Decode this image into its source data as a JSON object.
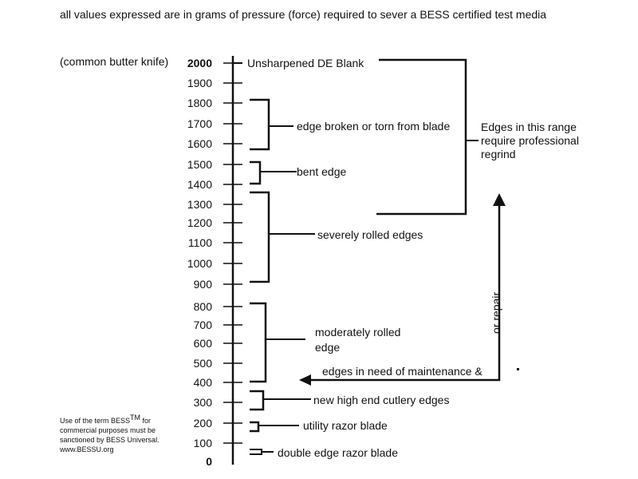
{
  "heading": "all values expressed are in grams of pressure (force) required to sever a BESS certified test media",
  "axis": {
    "knife_label": "(common butter knife)",
    "ticks": [
      {
        "value": 2000,
        "label": "2000",
        "bold": true
      },
      {
        "value": 1900,
        "label": "1900"
      },
      {
        "value": 1800,
        "label": "1800"
      },
      {
        "value": 1700,
        "label": "1700"
      },
      {
        "value": 1600,
        "label": "1600"
      },
      {
        "value": 1500,
        "label": "1500"
      },
      {
        "value": 1400,
        "label": "1400"
      },
      {
        "value": 1300,
        "label": "1300"
      },
      {
        "value": 1200,
        "label": "1200"
      },
      {
        "value": 1100,
        "label": "1100"
      },
      {
        "value": 1000,
        "label": "1000"
      },
      {
        "value": 900,
        "label": "900"
      },
      {
        "value": 800,
        "label": "800"
      },
      {
        "value": 700,
        "label": "700"
      },
      {
        "value": 600,
        "label": "600"
      },
      {
        "value": 500,
        "label": "500"
      },
      {
        "value": 400,
        "label": "400"
      },
      {
        "value": 300,
        "label": "300"
      },
      {
        "value": 200,
        "label": "200"
      },
      {
        "value": 100,
        "label": "100"
      },
      {
        "value": 0,
        "label": "0",
        "bold": true
      }
    ]
  },
  "ranges": [
    {
      "label": "Unsharpened DE Blank",
      "from": 2000,
      "to": 2000
    },
    {
      "label": "edge broken or torn from blade",
      "from": 1600,
      "to": 1800
    },
    {
      "label": "bent edge",
      "from": 1400,
      "to": 1500
    },
    {
      "label": "severely rolled edges",
      "from": 900,
      "to": 1300
    },
    {
      "label": "moderately rolled edge",
      "line1": "moderately rolled",
      "line2": "edge",
      "from": 400,
      "to": 800
    },
    {
      "label": "new high end cutlery edges",
      "from": 250,
      "to": 350
    },
    {
      "label": "utility razor blade",
      "from": 150,
      "to": 200
    },
    {
      "label": "double edge razor blade",
      "from": 50,
      "to": 100
    }
  ],
  "regrind": {
    "line1": "Edges in this range",
    "line2": "require professional",
    "line3": "regrind"
  },
  "maintenance_label": "edges in need of maintenance &",
  "repair_label": "or repair",
  "note": {
    "line1": "Use of the term BESS",
    "tm": "TM",
    "line1_end": " for",
    "line2": "commercial purposes must be",
    "line3": "sanctioned by BESS Universal.",
    "line4": "www.BESSU.org"
  }
}
